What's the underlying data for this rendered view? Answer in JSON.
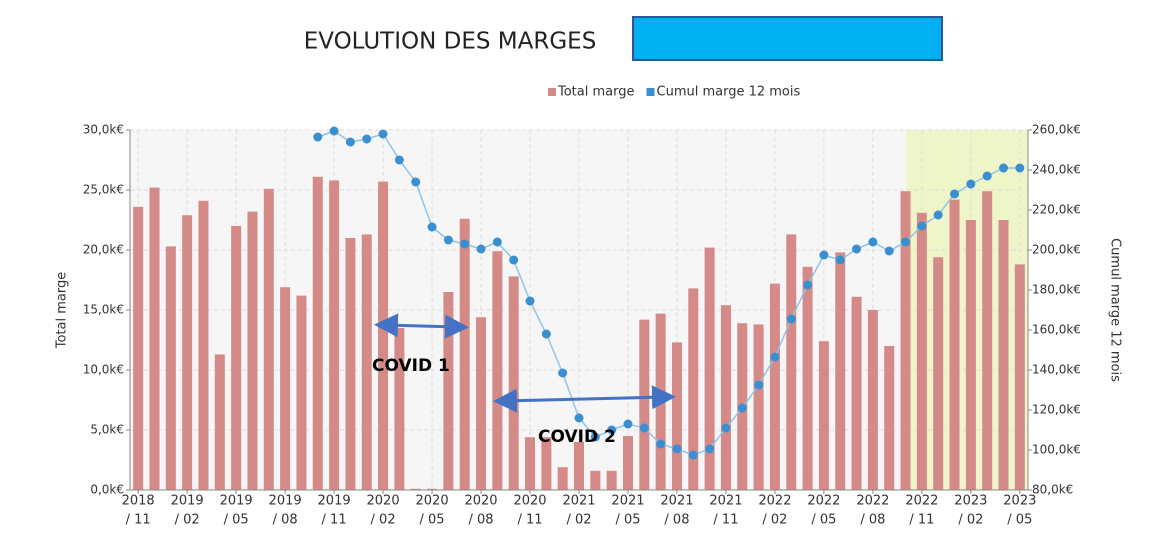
{
  "chart_data": {
    "type": "bar_line",
    "title": "EVOLUTION DES MARGES",
    "y_label": "Total marge",
    "y2_label": "Cumul marge 12 mois",
    "categories": [
      [
        "2018",
        "/ 11"
      ],
      null,
      null,
      [
        "2019",
        "/ 02"
      ],
      null,
      null,
      [
        "2019",
        "/ 05"
      ],
      null,
      null,
      [
        "2019",
        "/ 08"
      ],
      null,
      null,
      [
        "2019",
        "/ 11"
      ],
      null,
      null,
      [
        "2020",
        "/ 02"
      ],
      null,
      null,
      [
        "2020",
        "/ 05"
      ],
      null,
      null,
      [
        "2020",
        "/ 08"
      ],
      null,
      null,
      [
        "2020",
        "/ 11"
      ],
      null,
      null,
      [
        "2021",
        "/ 02"
      ],
      null,
      null,
      [
        "2021",
        "/ 05"
      ],
      null,
      null,
      [
        "2021",
        "/ 08"
      ],
      null,
      null,
      [
        "2021",
        "/ 11"
      ],
      null,
      null,
      [
        "2022",
        "/ 02"
      ],
      null,
      null,
      [
        "2022",
        "/ 05"
      ],
      null,
      null,
      [
        "2022",
        "/ 08"
      ],
      null,
      null,
      [
        "2022",
        "/ 11"
      ],
      null,
      null,
      [
        "2023",
        "/ 02"
      ],
      null,
      null,
      [
        "2023",
        "/ 05"
      ]
    ],
    "series": [
      {
        "name": "Total marge",
        "color": "#d48a87",
        "axis": "y",
        "values": [
          23.6,
          25.2,
          20.3,
          22.9,
          24.1,
          11.3,
          22.0,
          23.2,
          25.1,
          16.9,
          16.2,
          26.1,
          25.8,
          21.0,
          21.3,
          25.7,
          13.5,
          0.1,
          0.1,
          16.5,
          22.6,
          14.4,
          19.9,
          17.8,
          4.4,
          4.4,
          1.9,
          4.0,
          1.6,
          1.6,
          4.5,
          14.2,
          14.7,
          12.3,
          16.8,
          20.2,
          15.4,
          13.9,
          13.8,
          17.2,
          21.3,
          18.6,
          12.4,
          19.8,
          16.1,
          15.0,
          12.0,
          24.9,
          23.1,
          19.4,
          24.2,
          22.5,
          24.9,
          22.5,
          18.8
        ]
      },
      {
        "name": "Cumul marge 12 mois",
        "color": "#3a8fd1",
        "line_color": "#8ec3ec",
        "axis": "y2",
        "values": [
          null,
          null,
          null,
          null,
          null,
          null,
          null,
          null,
          null,
          null,
          null,
          256.5,
          259.5,
          254,
          255.5,
          258,
          245,
          234,
          211.5,
          205,
          203,
          200.5,
          204,
          195,
          174.5,
          158,
          138.5,
          116,
          106.5,
          110,
          113,
          111,
          103,
          100.5,
          97.5,
          100.5,
          111,
          121,
          132.5,
          146.5,
          165.5,
          182.5,
          197.5,
          195,
          200.5,
          204,
          199.5,
          204,
          212,
          217.5,
          228,
          233,
          237,
          241,
          241
        ]
      }
    ],
    "ylim": [
      0,
      30
    ],
    "yticks": [
      {
        "value": 0,
        "label": "0,0k€"
      },
      {
        "value": 5,
        "label": "5,0k€"
      },
      {
        "value": 10,
        "label": "10,0k€"
      },
      {
        "value": 15,
        "label": "15,0k€"
      },
      {
        "value": 20,
        "label": "20,0k€"
      },
      {
        "value": 25,
        "label": "25,0k€"
      },
      {
        "value": 30,
        "label": "30,0k€"
      }
    ],
    "y2lim": [
      80,
      260
    ],
    "y2ticks": [
      {
        "value": 80,
        "label": "80,0k€"
      },
      {
        "value": 100,
        "label": "100,0k€"
      },
      {
        "value": 120,
        "label": "120,0k€"
      },
      {
        "value": 140,
        "label": "140,0k€"
      },
      {
        "value": 160,
        "label": "160,0k€"
      },
      {
        "value": 180,
        "label": "180,0k€"
      },
      {
        "value": 200,
        "label": "200,0k€"
      },
      {
        "value": 220,
        "label": "220,0k€"
      },
      {
        "value": 240,
        "label": "240,0k€"
      },
      {
        "value": 260,
        "label": "260,0k€"
      }
    ],
    "grid": true,
    "legend": "top",
    "annotations": [
      "COVID 1",
      "COVID 2"
    ]
  }
}
